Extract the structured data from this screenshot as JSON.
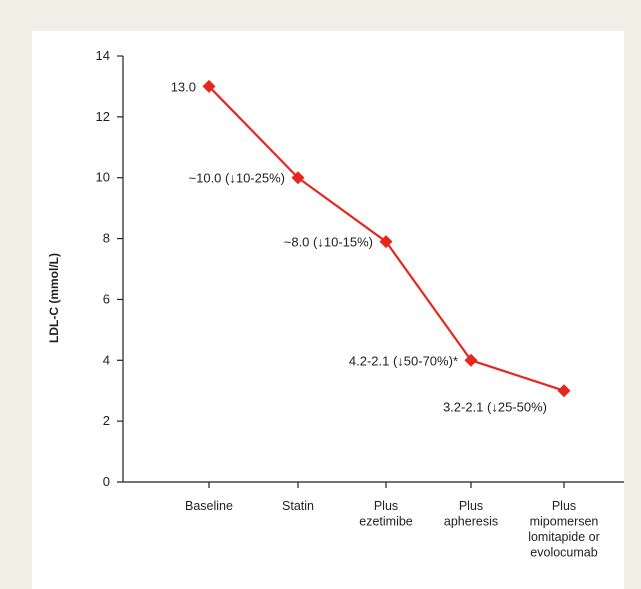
{
  "colors": {
    "background": "#f0efe6",
    "panel": "#ffffff",
    "series": "#e8261d",
    "axis": "#231f20"
  },
  "chart_data": {
    "type": "line",
    "ylabel": "LDL-C (mmol/L)",
    "ylim": [
      0,
      14
    ],
    "yticks": [
      0,
      2,
      4,
      6,
      8,
      10,
      12,
      14
    ],
    "grid": false,
    "categories": [
      [
        "Baseline"
      ],
      [
        "Statin"
      ],
      [
        "Plus",
        "ezetimibe"
      ],
      [
        "Plus",
        "apheresis"
      ],
      [
        "Plus",
        "mipomersen",
        "lomitapide or",
        "evolocumab"
      ]
    ],
    "series": [
      {
        "values": [
          13.0,
          10.0,
          7.9,
          4.0,
          3.0
        ],
        "marker": "diamond",
        "labels": [
          "13.0",
          "~10.0 (↓10-25%)",
          "~8.0 (↓10-15%)",
          "4.2-2.1 (↓50-70%)*",
          "3.2-2.1 (↓25-50%)"
        ]
      }
    ]
  }
}
